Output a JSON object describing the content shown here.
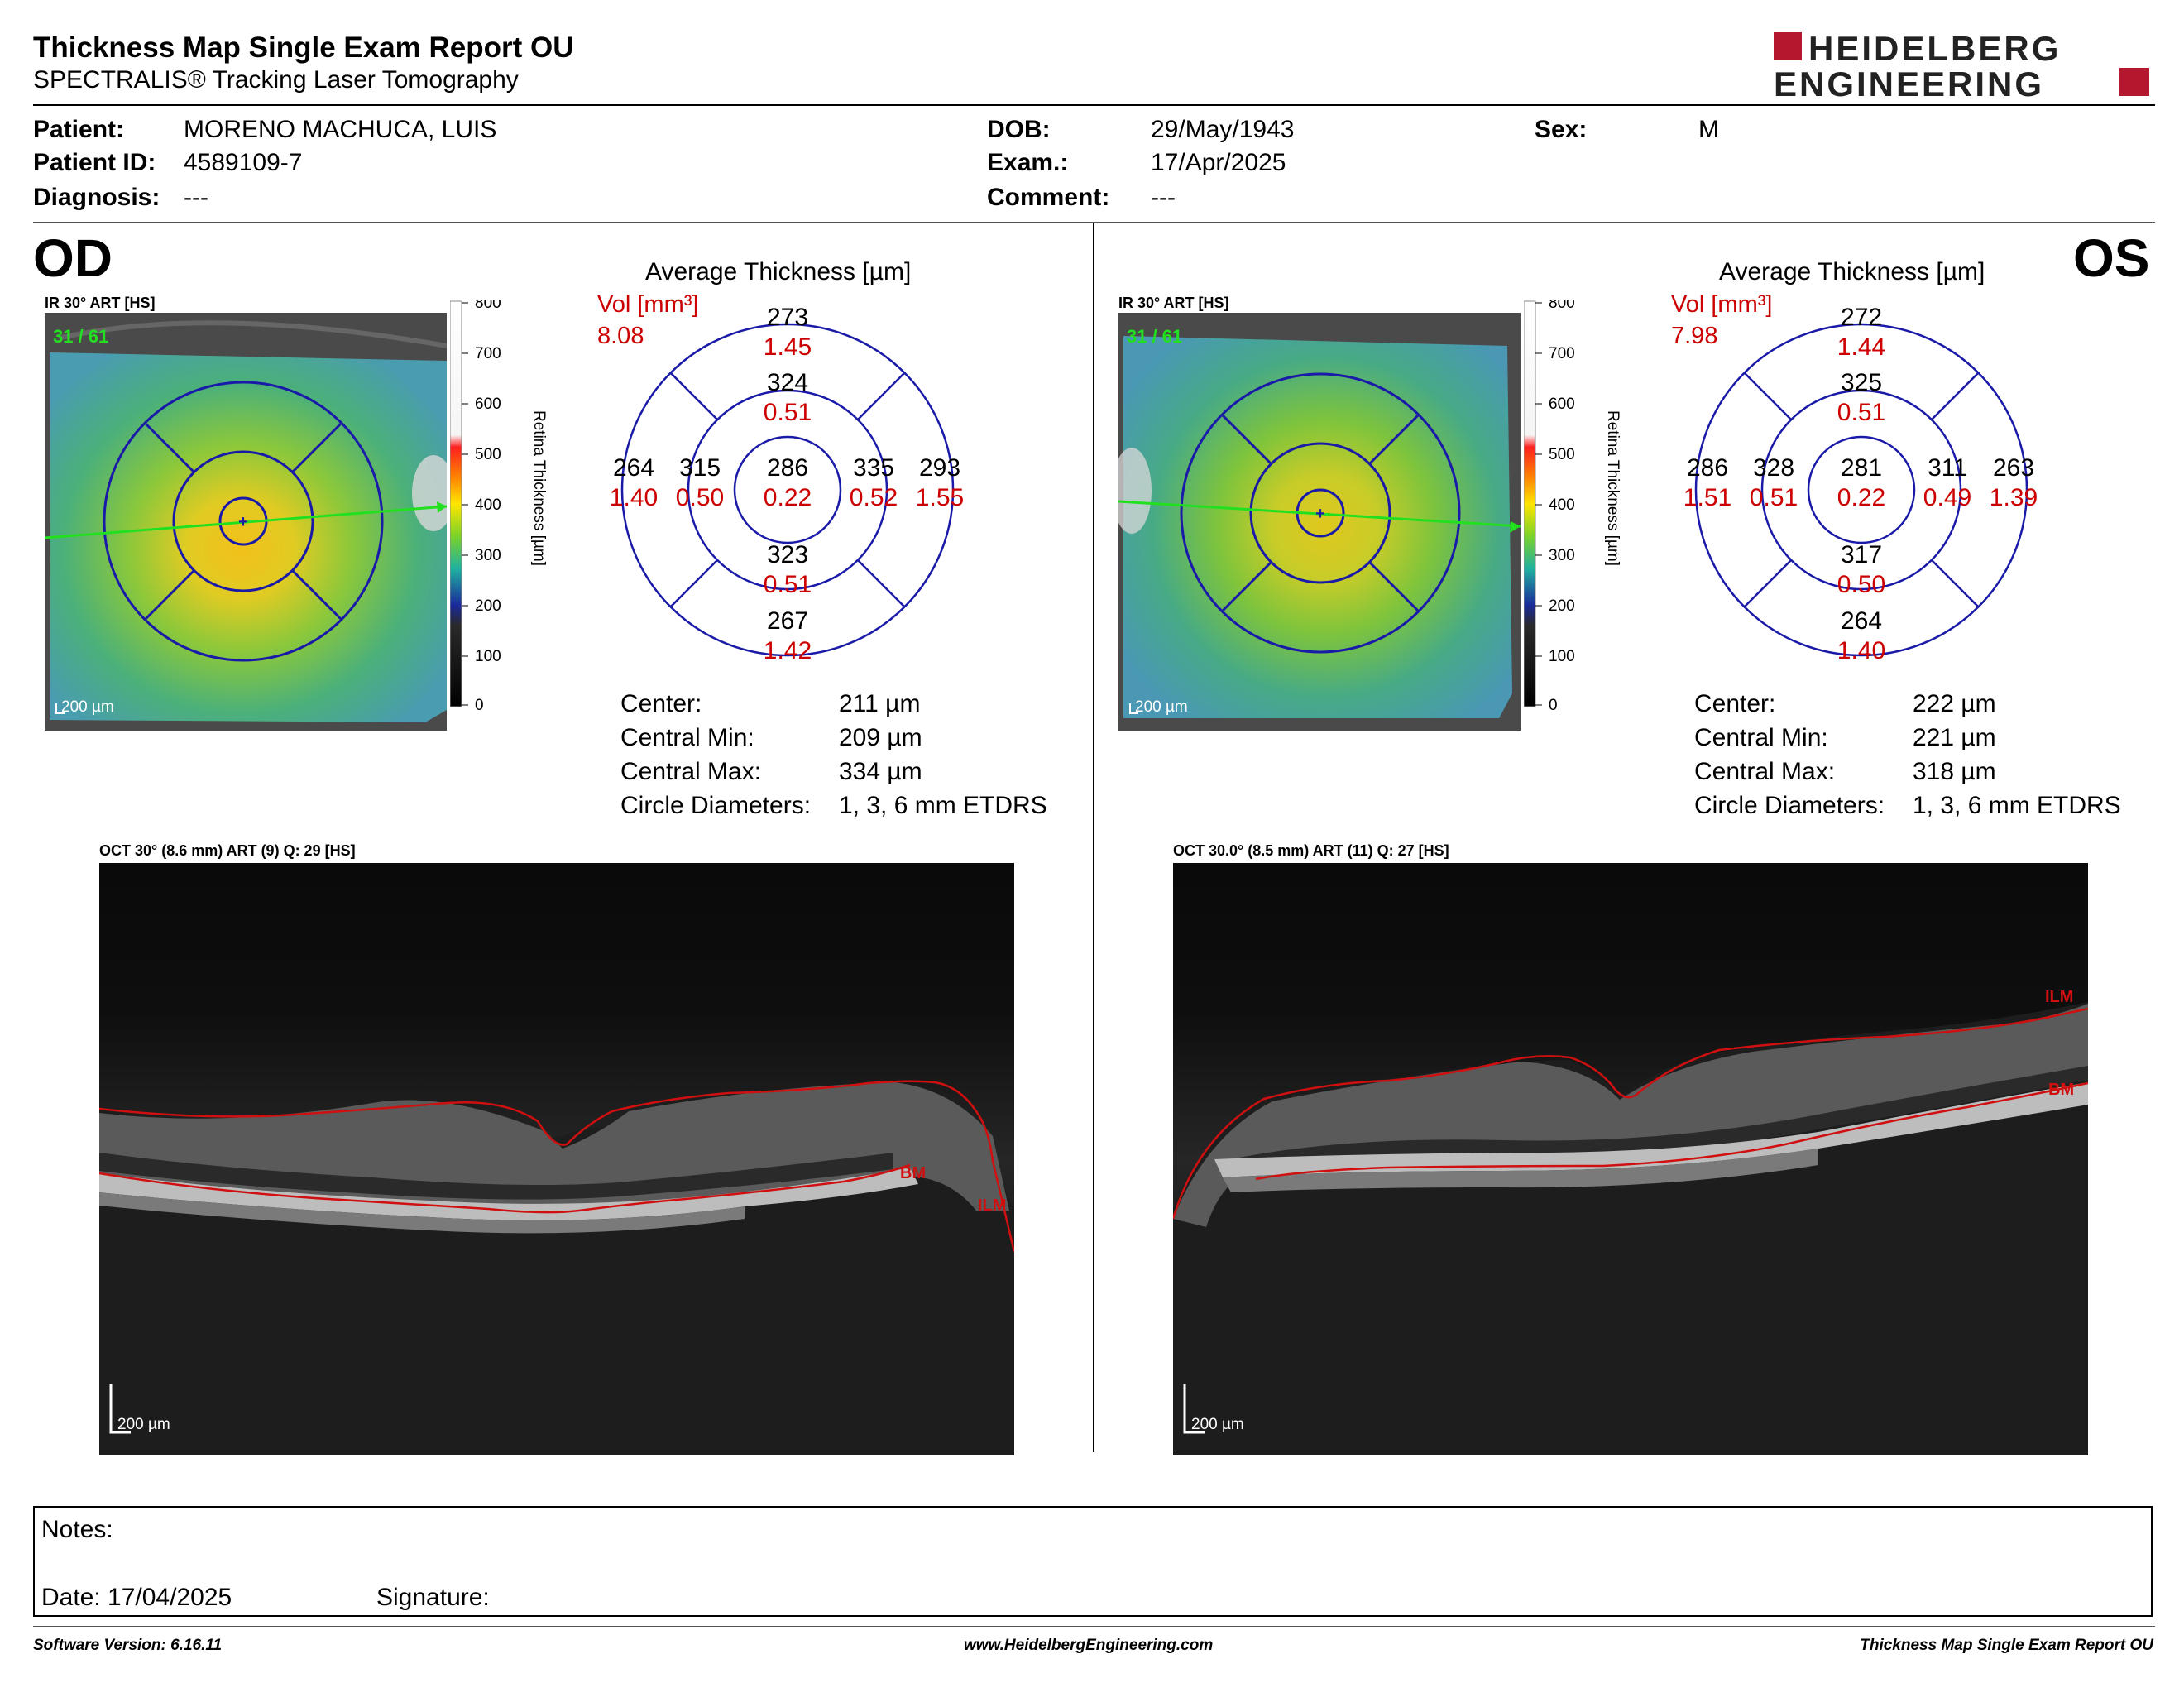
{
  "header": {
    "title": "Thickness Map Single Exam Report OU",
    "subtitle": "SPECTRALIS® Tracking Laser Tomography",
    "logo_line1": "HEIDELBERG",
    "logo_line2": "ENGINEERING"
  },
  "patient": {
    "patient_label": "Patient:",
    "patient_value": "MORENO MACHUCA, LUIS",
    "id_label": "Patient ID:",
    "id_value": "4589109-7",
    "diagnosis_label": "Diagnosis:",
    "diagnosis_value": "---",
    "dob_label": "DOB:",
    "dob_value": "29/May/1943",
    "exam_label": "Exam.:",
    "exam_value": "17/Apr/2025",
    "comment_label": "Comment:",
    "comment_value": "---",
    "sex_label": "Sex:",
    "sex_value": "M"
  },
  "colorbar": {
    "ticks": [
      "800",
      "700",
      "600",
      "500",
      "400",
      "300",
      "200",
      "100",
      "0"
    ],
    "label": "Retina  Thickness [µm]"
  },
  "od": {
    "eye": "OD",
    "fundus_title": "IR 30° ART [HS]",
    "frame_counter": "31 / 61",
    "scale": "200 µm",
    "avg_title": "Average Thickness [µm]",
    "vol_label": "Vol [mm³]",
    "vol_total": "8.08",
    "sectors": {
      "outer_superior": {
        "t": "273",
        "v": "1.45"
      },
      "inner_superior": {
        "t": "324",
        "v": "0.51"
      },
      "outer_left": {
        "t": "264",
        "v": "1.40"
      },
      "inner_left": {
        "t": "315",
        "v": "0.50"
      },
      "center": {
        "t": "286",
        "v": "0.22"
      },
      "inner_right": {
        "t": "335",
        "v": "0.52"
      },
      "outer_right": {
        "t": "293",
        "v": "1.55"
      },
      "inner_inferior": {
        "t": "323",
        "v": "0.51"
      },
      "outer_inferior": {
        "t": "267",
        "v": "1.42"
      }
    },
    "stats": [
      {
        "label": "Center:",
        "value": "211 µm"
      },
      {
        "label": "Central Min:",
        "value": "209 µm"
      },
      {
        "label": "Central Max:",
        "value": "334 µm"
      },
      {
        "label": "Circle Diameters:",
        "value": "1, 3, 6 mm ETDRS"
      }
    ],
    "oct_title": "OCT 30° (8.6 mm) ART (9) Q: 29 [HS]",
    "oct_scale": "200 µm",
    "layer_labels": {
      "bm": "BM",
      "ilm": "ILM"
    }
  },
  "os": {
    "eye": "OS",
    "fundus_title": "IR 30° ART [HS]",
    "frame_counter": "31 / 61",
    "scale": "200 µm",
    "avg_title": "Average Thickness [µm]",
    "vol_label": "Vol [mm³]",
    "vol_total": "7.98",
    "sectors": {
      "outer_superior": {
        "t": "272",
        "v": "1.44"
      },
      "inner_superior": {
        "t": "325",
        "v": "0.51"
      },
      "outer_left": {
        "t": "286",
        "v": "1.51"
      },
      "inner_left": {
        "t": "328",
        "v": "0.51"
      },
      "center": {
        "t": "281",
        "v": "0.22"
      },
      "inner_right": {
        "t": "311",
        "v": "0.49"
      },
      "outer_right": {
        "t": "263",
        "v": "1.39"
      },
      "inner_inferior": {
        "t": "317",
        "v": "0.50"
      },
      "outer_inferior": {
        "t": "264",
        "v": "1.40"
      }
    },
    "stats": [
      {
        "label": "Center:",
        "value": "222 µm"
      },
      {
        "label": "Central Min:",
        "value": "221 µm"
      },
      {
        "label": "Central Max:",
        "value": "318 µm"
      },
      {
        "label": "Circle Diameters:",
        "value": "1, 3, 6 mm ETDRS"
      }
    ],
    "oct_title": "OCT 30.0° (8.5 mm) ART (11) Q: 27 [HS]",
    "oct_scale": "200 µm",
    "layer_labels": {
      "bm": "BM",
      "ilm": "ILM"
    }
  },
  "notes": {
    "notes_label": "Notes:",
    "date_label": "Date: 17/04/2025",
    "signature_label": "Signature:"
  },
  "footer": {
    "left": "Software Version: 6.16.11",
    "center": "www.HeidelbergEngineering.com",
    "right": "Thickness Map Single Exam Report OU"
  },
  "colors": {
    "brand_red": "#b3182e",
    "value_red": "#cc0000",
    "etdrs_blue": "#1a1aa8",
    "fixation_green": "#22e020",
    "layer_red": "#d01010"
  }
}
